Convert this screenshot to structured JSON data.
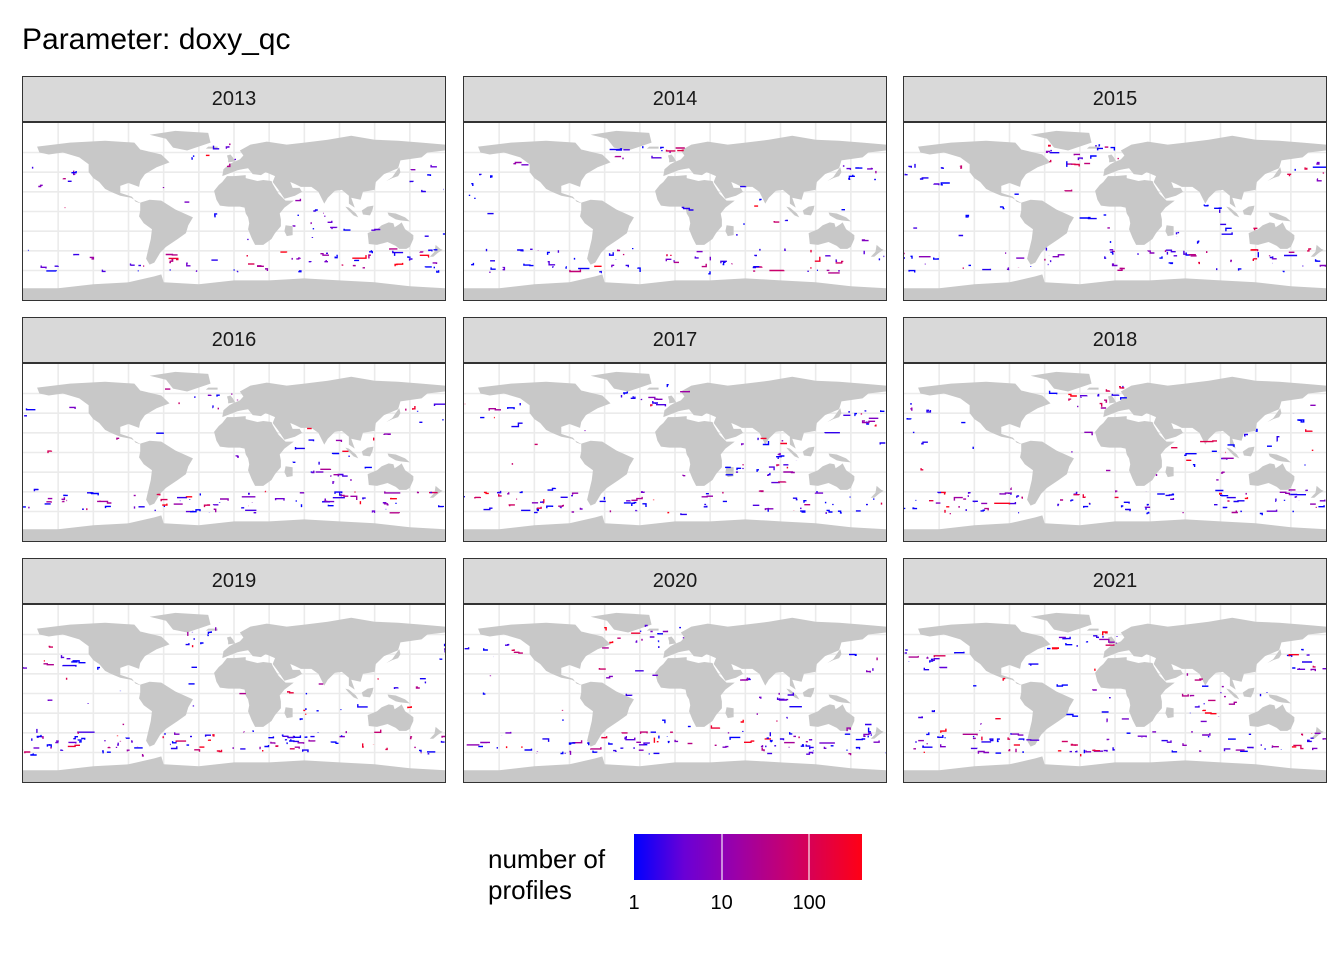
{
  "title": "Parameter: doxy_qc",
  "panels": [
    {
      "year": "2013"
    },
    {
      "year": "2014"
    },
    {
      "year": "2015"
    },
    {
      "year": "2016"
    },
    {
      "year": "2017"
    },
    {
      "year": "2018"
    },
    {
      "year": "2019"
    },
    {
      "year": "2020"
    },
    {
      "year": "2021"
    }
  ],
  "legend": {
    "title_line1": "number of",
    "title_line2": "profiles",
    "scale": "log10",
    "range": [
      1,
      400
    ],
    "ticks": [
      "1",
      "10",
      "100"
    ],
    "colors": {
      "low": "#0000ff",
      "high": "#ff0015"
    }
  },
  "colors": {
    "land": "#c8c8c8",
    "ocean": "#ffffff",
    "gridline": "#ebebeb",
    "strip": "#d9d9d9"
  }
}
